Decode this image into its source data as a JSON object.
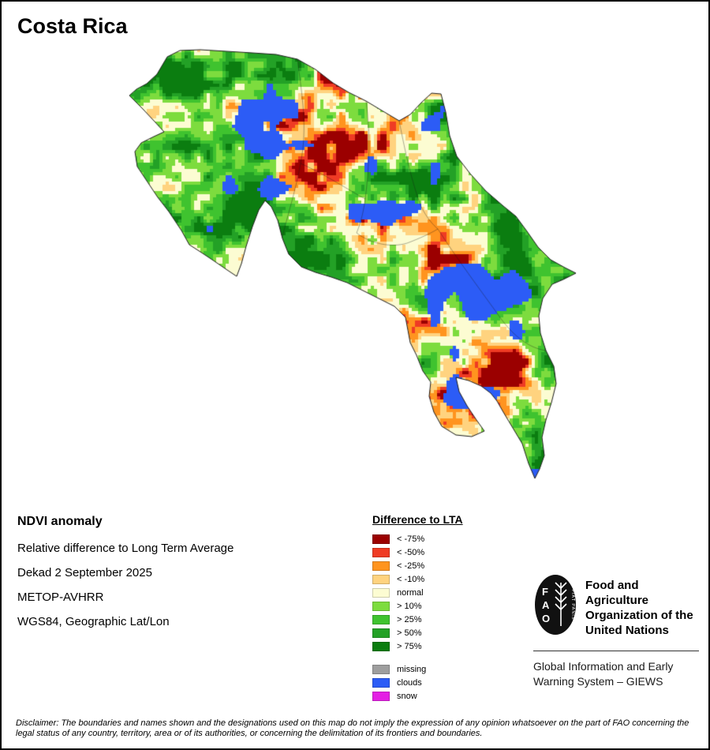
{
  "page": {
    "title": "Costa Rica"
  },
  "info": {
    "heading": "NDVI anomaly",
    "lines": [
      "Relative difference to Long Term Average",
      "Dekad 2 September 2025",
      "METOP-AVHRR",
      "WGS84, Geographic Lat/Lon"
    ]
  },
  "legend": {
    "title": "Difference to LTA",
    "items": [
      {
        "label": "< -75%",
        "color": "#9b0000"
      },
      {
        "label": "< -50%",
        "color": "#ef3b24"
      },
      {
        "label": "< -25%",
        "color": "#ff941f"
      },
      {
        "label": "< -10%",
        "color": "#ffd37f"
      },
      {
        "label": "normal",
        "color": "#fcfcd2"
      },
      {
        "label": "> 10%",
        "color": "#7ddc3e"
      },
      {
        "label": "> 25%",
        "color": "#3fc32f"
      },
      {
        "label": "> 50%",
        "color": "#23a126"
      },
      {
        "label": "> 75%",
        "color": "#0b7d10"
      }
    ],
    "extra_items": [
      {
        "label": "missing",
        "color": "#9e9e9e"
      },
      {
        "label": "clouds",
        "color": "#2c5cf6"
      },
      {
        "label": "snow",
        "color": "#e420e4"
      }
    ]
  },
  "map": {
    "country": "Costa Rica",
    "sea_color": "#ffffff",
    "outline_color": "#1a1a1a"
  },
  "fao": {
    "logo_letters": [
      "F",
      "A",
      "O"
    ],
    "logo_motto": "FIAT PANIS",
    "org_lines": [
      "Food and Agriculture",
      "Organization of the",
      "United Nations"
    ],
    "giews_lines": [
      "Global Information and Early",
      "Warning System – GIEWS"
    ]
  },
  "disclaimer": "Disclaimer: The boundaries and names shown and the designations used on this map do not imply the expression of any opinion whatsoever on the part of FAO concerning the legal status of any country, territory, area or of its authorities, or concerning the delimitation of its frontiers and boundaries."
}
